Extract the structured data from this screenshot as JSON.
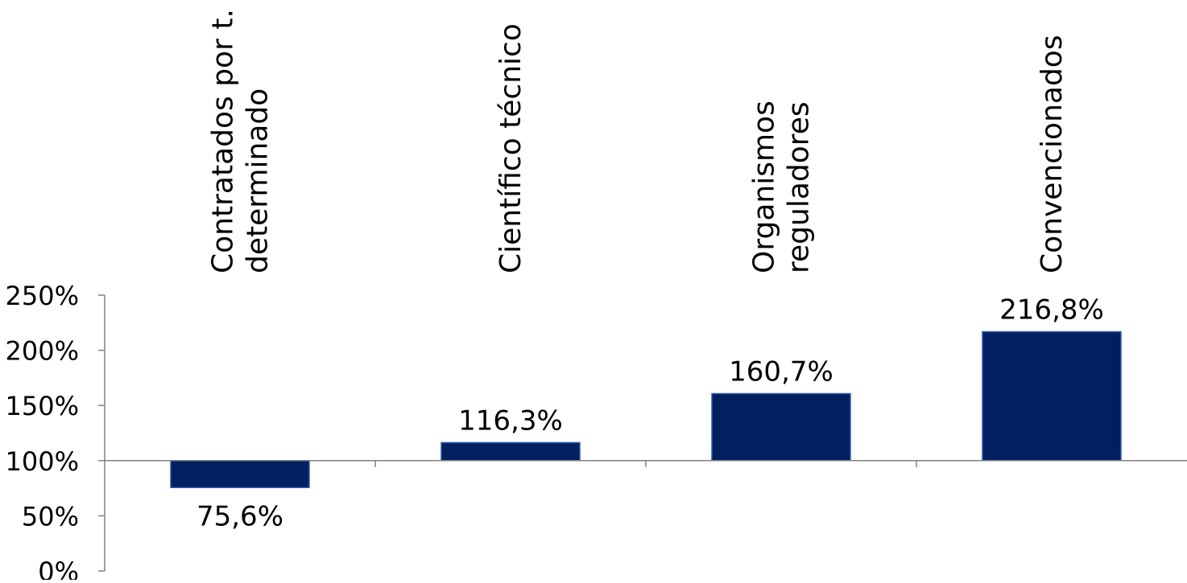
{
  "chart_data": {
    "type": "bar",
    "baseline": 100,
    "categories": [
      [
        "Contratados por t.",
        "determinado"
      ],
      [
        "Científico técnico"
      ],
      [
        "Organismos",
        "reguladores"
      ],
      [
        "Convencionados"
      ]
    ],
    "values": [
      75.6,
      116.3,
      160.7,
      216.8
    ],
    "data_labels": [
      "75,6%",
      "116,3%",
      "160,7%",
      "216,8%"
    ],
    "y_ticks": [
      0,
      50,
      100,
      150,
      200,
      250
    ],
    "y_tick_labels": [
      "0%",
      "50%",
      "100%",
      "150%",
      "200%",
      "250%"
    ],
    "ylim": [
      0,
      250
    ],
    "title": "",
    "xlabel": "",
    "ylabel": "",
    "grid": false,
    "colors": {
      "bar": "#002060",
      "bar_edge": "#2e5aa8",
      "axis": "#808080"
    }
  }
}
